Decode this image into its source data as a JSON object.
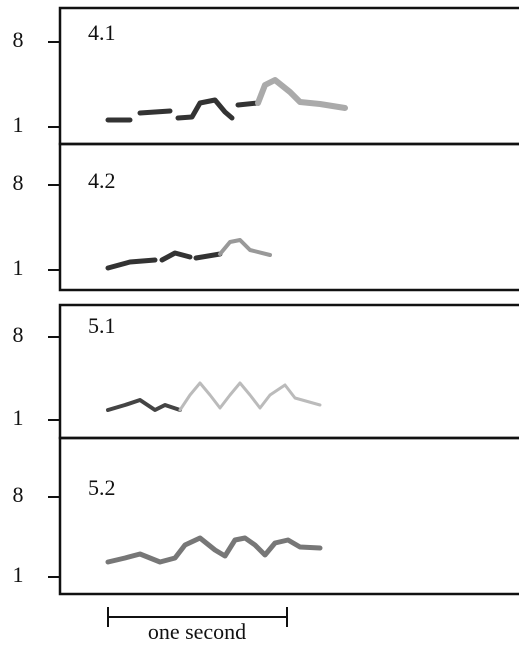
{
  "panels": [
    {
      "label": "4.1",
      "y_ticks": [
        "8",
        "1"
      ]
    },
    {
      "label": "4.2",
      "y_ticks": [
        "8",
        "1"
      ]
    },
    {
      "label": "5.1",
      "y_ticks": [
        "8",
        "1"
      ]
    },
    {
      "label": "5.2",
      "y_ticks": [
        "8",
        "1"
      ]
    }
  ],
  "scale_bar": "one second"
}
